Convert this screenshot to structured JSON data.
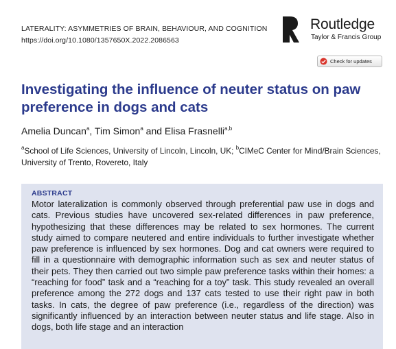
{
  "header": {
    "journal_line": "LATERALITY: ASYMMETRIES OF BRAIN, BEHAVIOUR, AND COGNITION",
    "doi_line": "https://doi.org/10.1080/1357650X.2022.2086563"
  },
  "publisher": {
    "logo_icon": "routledge-logo-icon",
    "name": "Routledge",
    "subtitle": "Taylor & Francis Group"
  },
  "check_updates": {
    "icon": "check-for-updates-icon",
    "label": "Check for updates"
  },
  "title": "Investigating the influence of neuter status on paw preference in dogs and cats",
  "authors": [
    {
      "name": "Amelia Duncan",
      "sup": "a",
      "sep": ", "
    },
    {
      "name": "Tim Simon",
      "sup": "a",
      "sep": " and "
    },
    {
      "name": "Elisa Frasnelli",
      "sup": "a,b",
      "sep": ""
    }
  ],
  "affiliations": [
    {
      "sup": "a",
      "text": "School of Life Sciences, University of Lincoln, Lincoln, UK; "
    },
    {
      "sup": "b",
      "text": "CIMeC Center for Mind/Brain Sciences, University of Trento, Rovereto, Italy"
    }
  ],
  "abstract": {
    "heading": "ABSTRACT",
    "text": "Motor lateralization is commonly observed through preferential paw use in dogs and cats. Previous studies have uncovered sex-related differences in paw preference, hypothesizing that these differences may be related to sex hormones. The current study aimed to compare neutered and entire individuals to further investigate whether paw preference is influenced by sex hormones. Dog and cat owners were required to fill in a questionnaire with demographic information such as sex and neuter status of their pets. They then carried out two simple paw preference tasks within their homes: a “reaching for food” task and a “reaching for a toy” task. This study revealed an overall preference among the 272 dogs and 137 cats tested to use their right paw in both tasks. In cats, the degree of paw preference (i.e., regardless of the direction) was significantly influenced by an interaction between neuter status and life stage. Also in dogs, both life stage and an interaction"
  },
  "colors": {
    "title": "#2b3a8c",
    "abstract_bg": "#dfe3ef",
    "check_icon_red": "#d9342b"
  }
}
